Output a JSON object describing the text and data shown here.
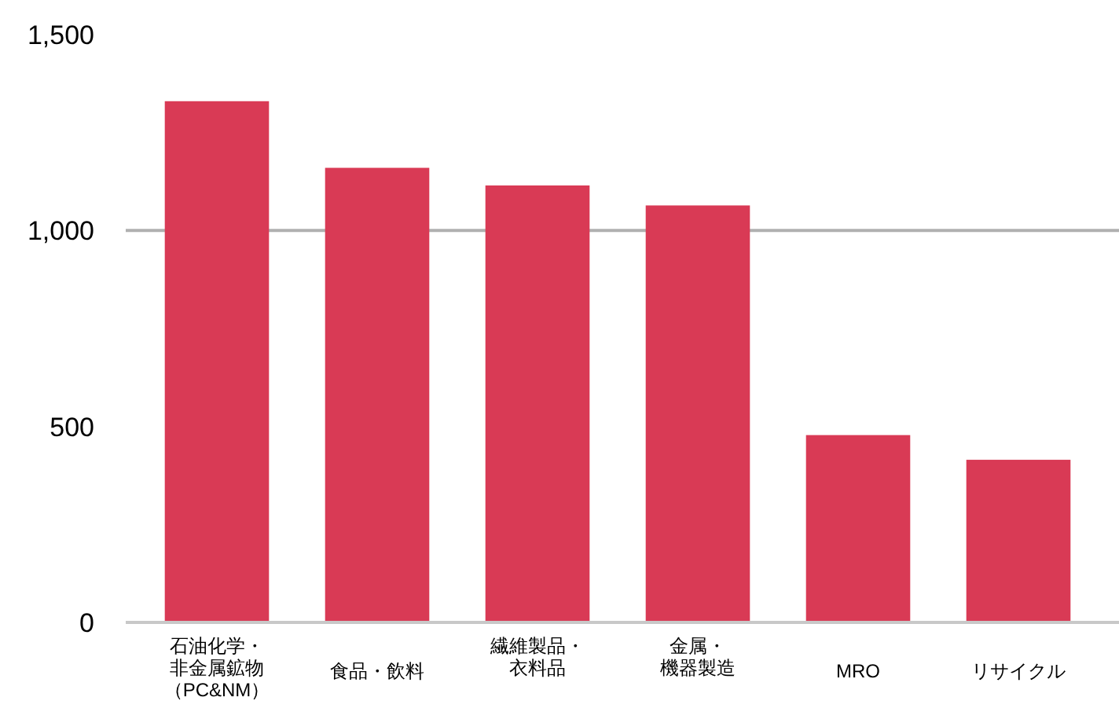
{
  "chart_data": {
    "type": "bar",
    "categories": [
      "石油化学・非金属鉱物（PC&NM）",
      "食品・飲料",
      "繊維製品・衣料品",
      "金属・機器製造",
      "MRO",
      "リサイクル"
    ],
    "values": [
      1330,
      1160,
      1115,
      1064,
      478,
      415
    ],
    "color": "#d93a55",
    "ylim": [
      0,
      1500
    ],
    "yticks": [
      {
        "value": 0,
        "label": "0"
      },
      {
        "value": 500,
        "label": "500"
      },
      {
        "value": 1000,
        "label": "1,000"
      },
      {
        "value": 1500,
        "label": "1,500"
      }
    ],
    "ref_lines": [
      {
        "axis": "y",
        "value": 1000,
        "color": "#b0b0b0"
      }
    ]
  }
}
